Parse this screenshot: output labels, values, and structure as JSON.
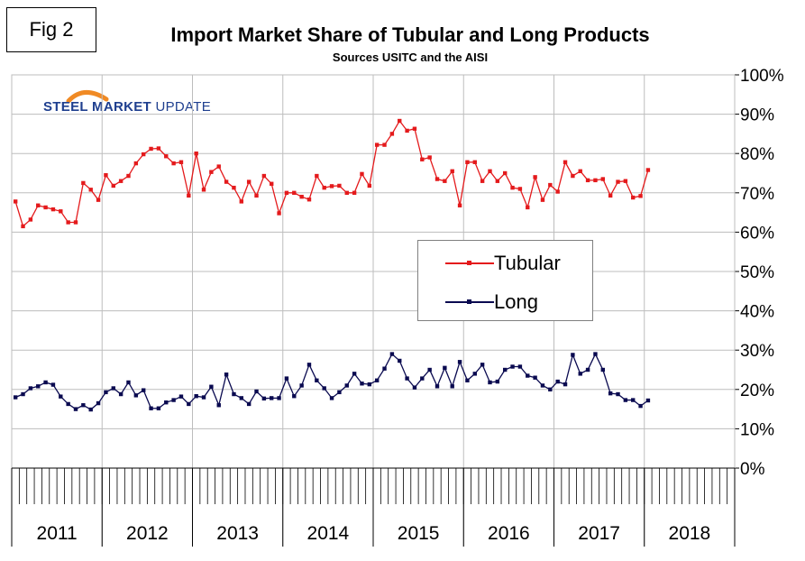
{
  "fig_label": "Fig 2",
  "logo": {
    "bold": "STEEL MARKET",
    "rest": " UPDATE",
    "arc_color": "#f08a24",
    "text_color": "#1f3f8f"
  },
  "chart_data": {
    "type": "line",
    "title": "Import Market Share of Tubular and Long Products",
    "subtitle": "Sources USITC and the AISI",
    "ylim": [
      0,
      100
    ],
    "y_ticks": [
      "0%",
      "10%",
      "20%",
      "30%",
      "40%",
      "50%",
      "60%",
      "70%",
      "80%",
      "90%",
      "100%"
    ],
    "y_tick_values": [
      0,
      10,
      20,
      30,
      40,
      50,
      60,
      70,
      80,
      90,
      100
    ],
    "grid": true,
    "x_start": "2011-01",
    "year_labels": [
      "2011",
      "2012",
      "2013",
      "2014",
      "2015",
      "2016",
      "2017",
      "2018"
    ],
    "months_per_year": 12,
    "legend_placement": "center-right",
    "series": [
      {
        "name": "Tubular",
        "color": "#e41a1c",
        "values": [
          67.8,
          61.5,
          63.2,
          66.8,
          66.3,
          65.8,
          65.3,
          62.5,
          62.5,
          72.5,
          70.8,
          68.2,
          74.5,
          71.8,
          73.0,
          74.3,
          77.5,
          79.8,
          81.2,
          81.3,
          79.3,
          77.5,
          77.8,
          69.3,
          80.0,
          70.8,
          75.3,
          76.7,
          72.8,
          71.3,
          67.8,
          72.8,
          69.3,
          74.3,
          72.3,
          64.8,
          70.0,
          70.0,
          69.0,
          68.3,
          74.3,
          71.3,
          71.7,
          71.8,
          70.0,
          70.0,
          74.8,
          71.8,
          82.2,
          82.2,
          85.0,
          88.3,
          85.8,
          86.3,
          78.5,
          79.0,
          73.5,
          73.0,
          75.5,
          66.8,
          77.8,
          77.8,
          73.0,
          75.5,
          73.0,
          75.0,
          71.3,
          71.0,
          66.3,
          74.0,
          68.2,
          72.0,
          70.3,
          77.8,
          74.3,
          75.5,
          73.2,
          73.2,
          73.5,
          69.3,
          72.8,
          73.0,
          68.8,
          69.2,
          75.8
        ]
      },
      {
        "name": "Long",
        "color": "#0a0a50",
        "values": [
          18.0,
          18.8,
          20.3,
          20.8,
          21.8,
          21.2,
          18.2,
          16.3,
          15.0,
          16.0,
          14.9,
          16.5,
          19.3,
          20.3,
          18.8,
          21.8,
          18.5,
          19.8,
          15.2,
          15.2,
          16.7,
          17.3,
          18.2,
          16.3,
          18.3,
          18.0,
          20.7,
          16.0,
          23.8,
          18.8,
          17.8,
          16.3,
          19.5,
          17.7,
          17.8,
          17.8,
          22.8,
          18.3,
          21.0,
          26.3,
          22.3,
          20.3,
          17.8,
          19.3,
          21.0,
          24.0,
          21.5,
          21.3,
          22.3,
          25.3,
          29.0,
          27.3,
          22.8,
          20.5,
          22.8,
          25.0,
          20.8,
          25.5,
          20.8,
          27.0,
          22.3,
          24.0,
          26.3,
          21.8,
          22.0,
          25.0,
          25.8,
          25.8,
          23.5,
          23.0,
          21.0,
          20.0,
          22.0,
          21.3,
          28.8,
          24.0,
          25.0,
          29.0,
          25.0,
          19.0,
          18.8,
          17.3,
          17.3,
          15.8,
          17.2
        ]
      }
    ]
  }
}
